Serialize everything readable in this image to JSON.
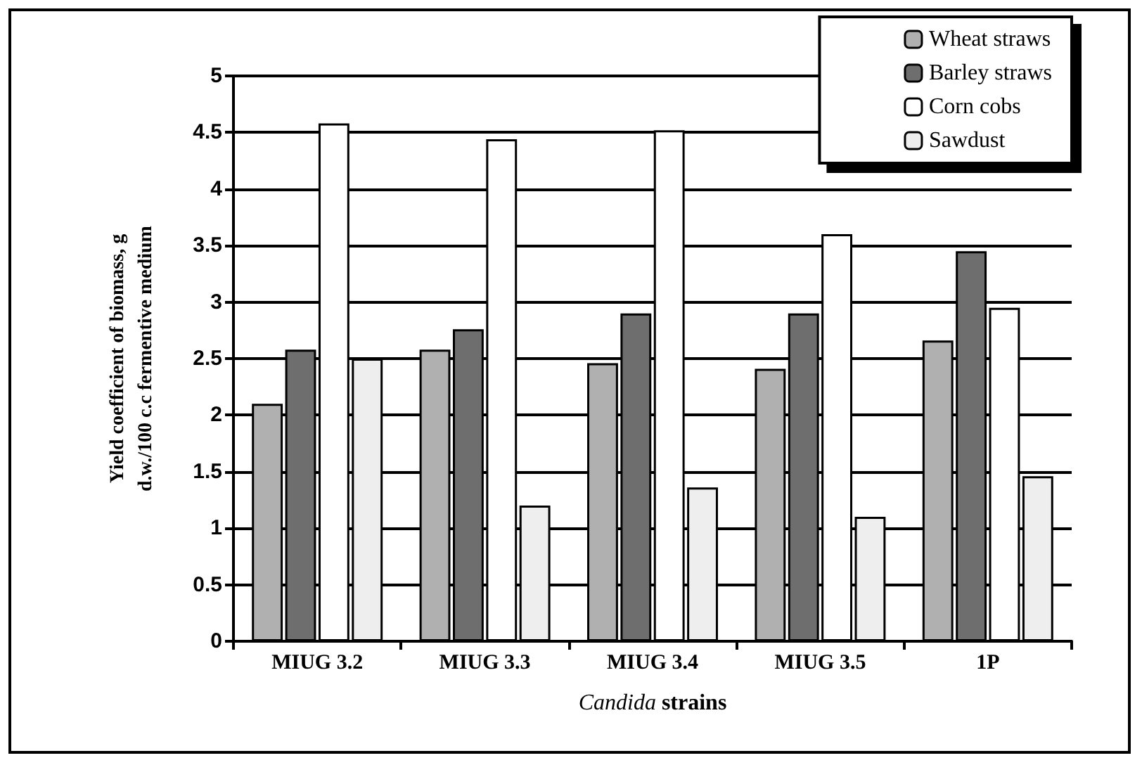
{
  "chart_data": {
    "type": "bar",
    "xlabel": "Candida strains",
    "ylabel": "Yield coefficient of biomass, g\nd.w./100 c.c fermentive medium",
    "categories": [
      "MIUG 3.2",
      "MIUG 3.3",
      "MIUG 3.4",
      "MIUG 3.5",
      "1P"
    ],
    "series": [
      {
        "name": "Wheat straws",
        "color": "#b0b0b0",
        "values": [
          2.1,
          2.58,
          2.46,
          2.41,
          2.66
        ]
      },
      {
        "name": "Barley straws",
        "color": "#6e6e6e",
        "values": [
          2.58,
          2.76,
          2.9,
          2.9,
          3.45
        ]
      },
      {
        "name": "Corn cobs",
        "color": "#ffffff",
        "values": [
          4.58,
          4.44,
          4.52,
          3.6,
          2.95
        ]
      },
      {
        "name": "Sawdust",
        "color": "#eeeeee",
        "values": [
          2.5,
          1.2,
          1.36,
          1.1,
          1.46
        ]
      }
    ],
    "ylim": [
      0,
      5
    ],
    "yticks": [
      0,
      0.5,
      1,
      1.5,
      2,
      2.5,
      3,
      3.5,
      4,
      4.5,
      5
    ],
    "grid": "y",
    "legend": "top right"
  }
}
